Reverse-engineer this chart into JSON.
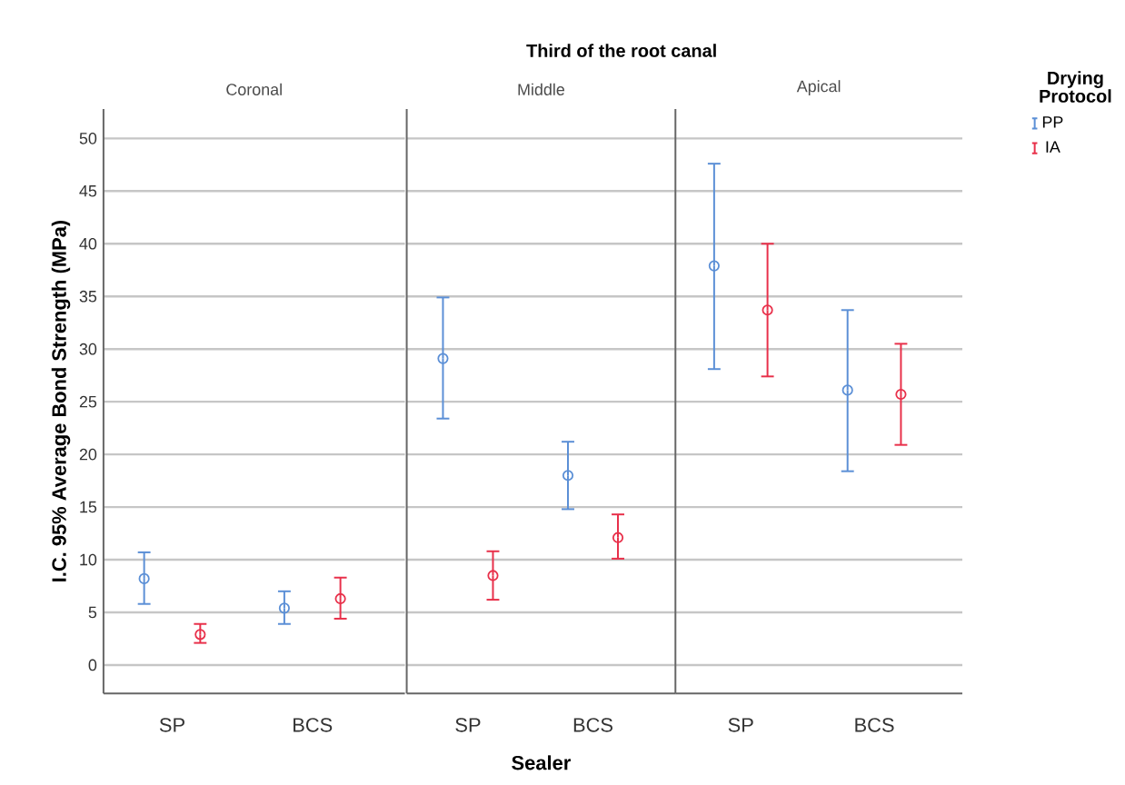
{
  "chart_data": [
    {
      "type": "scatter",
      "title": "Coronal",
      "ylabel": "I.C. 95% Average Bond Strength (MPa)",
      "categories": [
        "SP",
        "BCS"
      ],
      "ylim": [
        -2.7,
        52.8
      ],
      "yticks": [
        0,
        5,
        10,
        15,
        20,
        25,
        30,
        35,
        40,
        45,
        50
      ],
      "grid": "y",
      "marker": "circle",
      "series": [
        {
          "color": "#5b8fd6",
          "values": [
            8.2,
            5.4
          ],
          "errors": [
            [
              5.8,
              10.7
            ],
            [
              3.9,
              7.0
            ]
          ]
        },
        {
          "color": "#e8304a",
          "values": [
            2.9,
            6.3
          ],
          "errors": [
            [
              2.1,
              3.9
            ],
            [
              4.4,
              8.3
            ]
          ]
        }
      ]
    },
    {
      "type": "scatter",
      "title": "Middle",
      "xlabel": "Sealer",
      "annotations": [
        "Third of the root canal"
      ],
      "categories": [
        "SP",
        "BCS"
      ],
      "ylim": [
        -2.7,
        52.8
      ],
      "yticks": [
        0,
        5,
        10,
        15,
        20,
        25,
        30,
        35,
        40,
        45,
        50
      ],
      "tick_labels": "x",
      "grid": "y",
      "marker": "circle",
      "series": [
        {
          "color": "#5b8fd6",
          "values": [
            29.1,
            18.0
          ],
          "errors": [
            [
              23.4,
              34.9
            ],
            [
              14.8,
              21.2
            ]
          ]
        },
        {
          "color": "#e8304a",
          "values": [
            8.5,
            12.1
          ],
          "errors": [
            [
              6.2,
              10.8
            ],
            [
              10.1,
              14.3
            ]
          ]
        }
      ]
    },
    {
      "type": "scatter",
      "title": "Apical",
      "legend_title": "Drying Protocol",
      "legend": "right",
      "categories": [
        "SP",
        "BCS"
      ],
      "ylim": [
        -2.7,
        52.8
      ],
      "yticks": [
        0,
        5,
        10,
        15,
        20,
        25,
        30,
        35,
        40,
        45,
        50
      ],
      "tick_labels": "x",
      "grid": "y",
      "marker": "circle",
      "series": [
        {
          "name": "PP",
          "color": "#5b8fd6",
          "values": [
            37.9,
            26.1
          ],
          "errors": [
            [
              28.1,
              47.6
            ],
            [
              18.4,
              33.7
            ]
          ]
        },
        {
          "name": "IA",
          "color": "#e8304a",
          "values": [
            33.7,
            25.7
          ],
          "errors": [
            [
              27.4,
              40.0
            ],
            [
              20.9,
              30.5
            ]
          ]
        }
      ]
    }
  ]
}
